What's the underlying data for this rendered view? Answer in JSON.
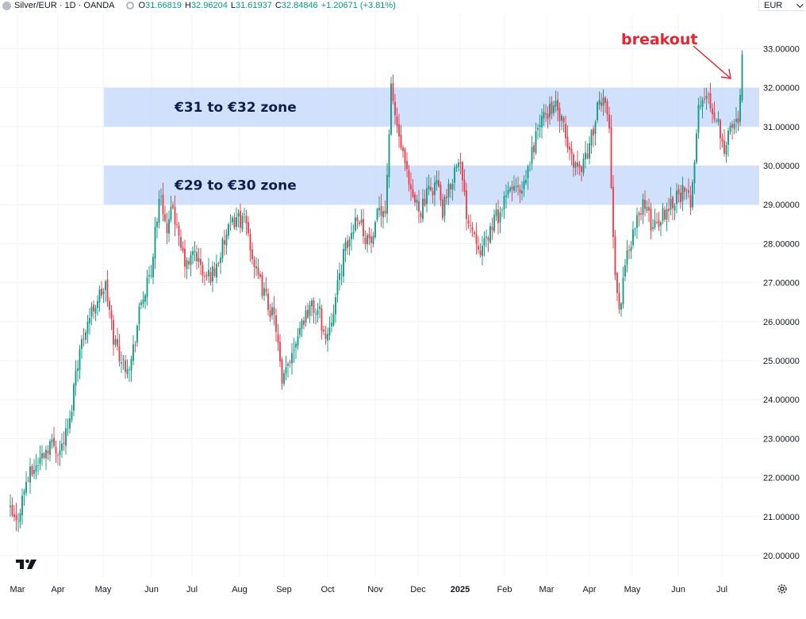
{
  "header": {
    "title": "Silver/EUR · 1D · OANDA",
    "o_label": "O",
    "o_value": "31.66819",
    "h_label": "H",
    "h_value": "32.96204",
    "l_label": "L",
    "l_value": "31.61937",
    "c_label": "C",
    "c_value": "32.84846",
    "change": "+1.20671 (+3.81%)"
  },
  "currency_selector": {
    "value": "EUR"
  },
  "icons": {
    "logo": "tradingview-logo-icon",
    "settings": "gear-icon",
    "symbol": "silver-symbol-icon"
  },
  "colors": {
    "up": "#089981",
    "down": "#f23645",
    "zone": "#c9dcfb",
    "annotation": "#e8232f",
    "zone_text": "#0c1f4a"
  },
  "chart_data": {
    "type": "candlestick",
    "symbol": "Silver/EUR",
    "interval": "1D",
    "source": "OANDA",
    "ylim": [
      19.5,
      33.5
    ],
    "y_ticks": [
      "20.00000",
      "21.00000",
      "22.00000",
      "23.00000",
      "24.00000",
      "25.00000",
      "26.00000",
      "27.00000",
      "28.00000",
      "29.00000",
      "30.00000",
      "31.00000",
      "32.00000",
      "33.00000"
    ],
    "x_ticks": [
      "Mar",
      "Apr",
      "May",
      "Jun",
      "Jul",
      "Aug",
      "Sep",
      "Oct",
      "Nov",
      "Dec",
      "2025",
      "Feb",
      "Mar",
      "Apr",
      "May",
      "Jun",
      "Jul"
    ],
    "zones": [
      {
        "label": "€31 to €32 zone",
        "low": 31,
        "high": 32
      },
      {
        "label": "€29 to €30 zone",
        "low": 29,
        "high": 30
      }
    ],
    "annotation": {
      "text": "breakout"
    },
    "price_path": [
      [
        0,
        21.1
      ],
      [
        3,
        20.8
      ],
      [
        8,
        21.9
      ],
      [
        14,
        22.4
      ],
      [
        20,
        22.9
      ],
      [
        25,
        22.7
      ],
      [
        30,
        23.4
      ],
      [
        33,
        24.8
      ],
      [
        38,
        25.9
      ],
      [
        44,
        26.6
      ],
      [
        48,
        26.9
      ],
      [
        52,
        25.6
      ],
      [
        57,
        24.9
      ],
      [
        61,
        25.0
      ],
      [
        66,
        26.5
      ],
      [
        71,
        27.2
      ],
      [
        73,
        28.4
      ],
      [
        76,
        29.3
      ],
      [
        79,
        28.2
      ],
      [
        82,
        29.0
      ],
      [
        85,
        28.0
      ],
      [
        89,
        27.4
      ],
      [
        93,
        27.8
      ],
      [
        98,
        27.1
      ],
      [
        103,
        27.3
      ],
      [
        109,
        28.2
      ],
      [
        114,
        28.7
      ],
      [
        119,
        28.5
      ],
      [
        124,
        27.2
      ],
      [
        129,
        26.6
      ],
      [
        134,
        25.9
      ],
      [
        137,
        24.3
      ],
      [
        141,
        25.1
      ],
      [
        146,
        25.9
      ],
      [
        151,
        26.4
      ],
      [
        156,
        26.2
      ],
      [
        159,
        25.5
      ],
      [
        164,
        26.6
      ],
      [
        168,
        27.7
      ],
      [
        171,
        28.1
      ],
      [
        175,
        28.8
      ],
      [
        179,
        28.2
      ],
      [
        183,
        28.0
      ],
      [
        186,
        29.0
      ],
      [
        189,
        28.8
      ],
      [
        192,
        31.9
      ],
      [
        195,
        31.0
      ],
      [
        198,
        30.2
      ],
      [
        202,
        29.2
      ],
      [
        207,
        28.9
      ],
      [
        211,
        29.3
      ],
      [
        215,
        29.6
      ],
      [
        218,
        28.8
      ],
      [
        222,
        29.5
      ],
      [
        226,
        30.3
      ],
      [
        230,
        28.8
      ],
      [
        234,
        28.3
      ],
      [
        238,
        27.8
      ],
      [
        243,
        28.5
      ],
      [
        248,
        28.9
      ],
      [
        253,
        29.5
      ],
      [
        258,
        29.2
      ],
      [
        262,
        30.1
      ],
      [
        266,
        31.0
      ],
      [
        270,
        31.3
      ],
      [
        274,
        31.6
      ],
      [
        278,
        31.1
      ],
      [
        282,
        30.3
      ],
      [
        287,
        29.9
      ],
      [
        292,
        30.5
      ],
      [
        296,
        31.4
      ],
      [
        300,
        31.8
      ],
      [
        302,
        31.0
      ],
      [
        304,
        28.0
      ],
      [
        307,
        26.2
      ],
      [
        311,
        27.8
      ],
      [
        315,
        28.4
      ],
      [
        319,
        29.1
      ],
      [
        323,
        28.5
      ],
      [
        327,
        28.6
      ],
      [
        331,
        28.9
      ],
      [
        335,
        29.2
      ],
      [
        339,
        29.3
      ],
      [
        343,
        29.1
      ],
      [
        347,
        31.4
      ],
      [
        350,
        31.8
      ],
      [
        353,
        31.6
      ],
      [
        357,
        31.1
      ],
      [
        360,
        30.5
      ],
      [
        364,
        31.0
      ],
      [
        367,
        31.2
      ],
      [
        369,
        32.85
      ]
    ]
  }
}
